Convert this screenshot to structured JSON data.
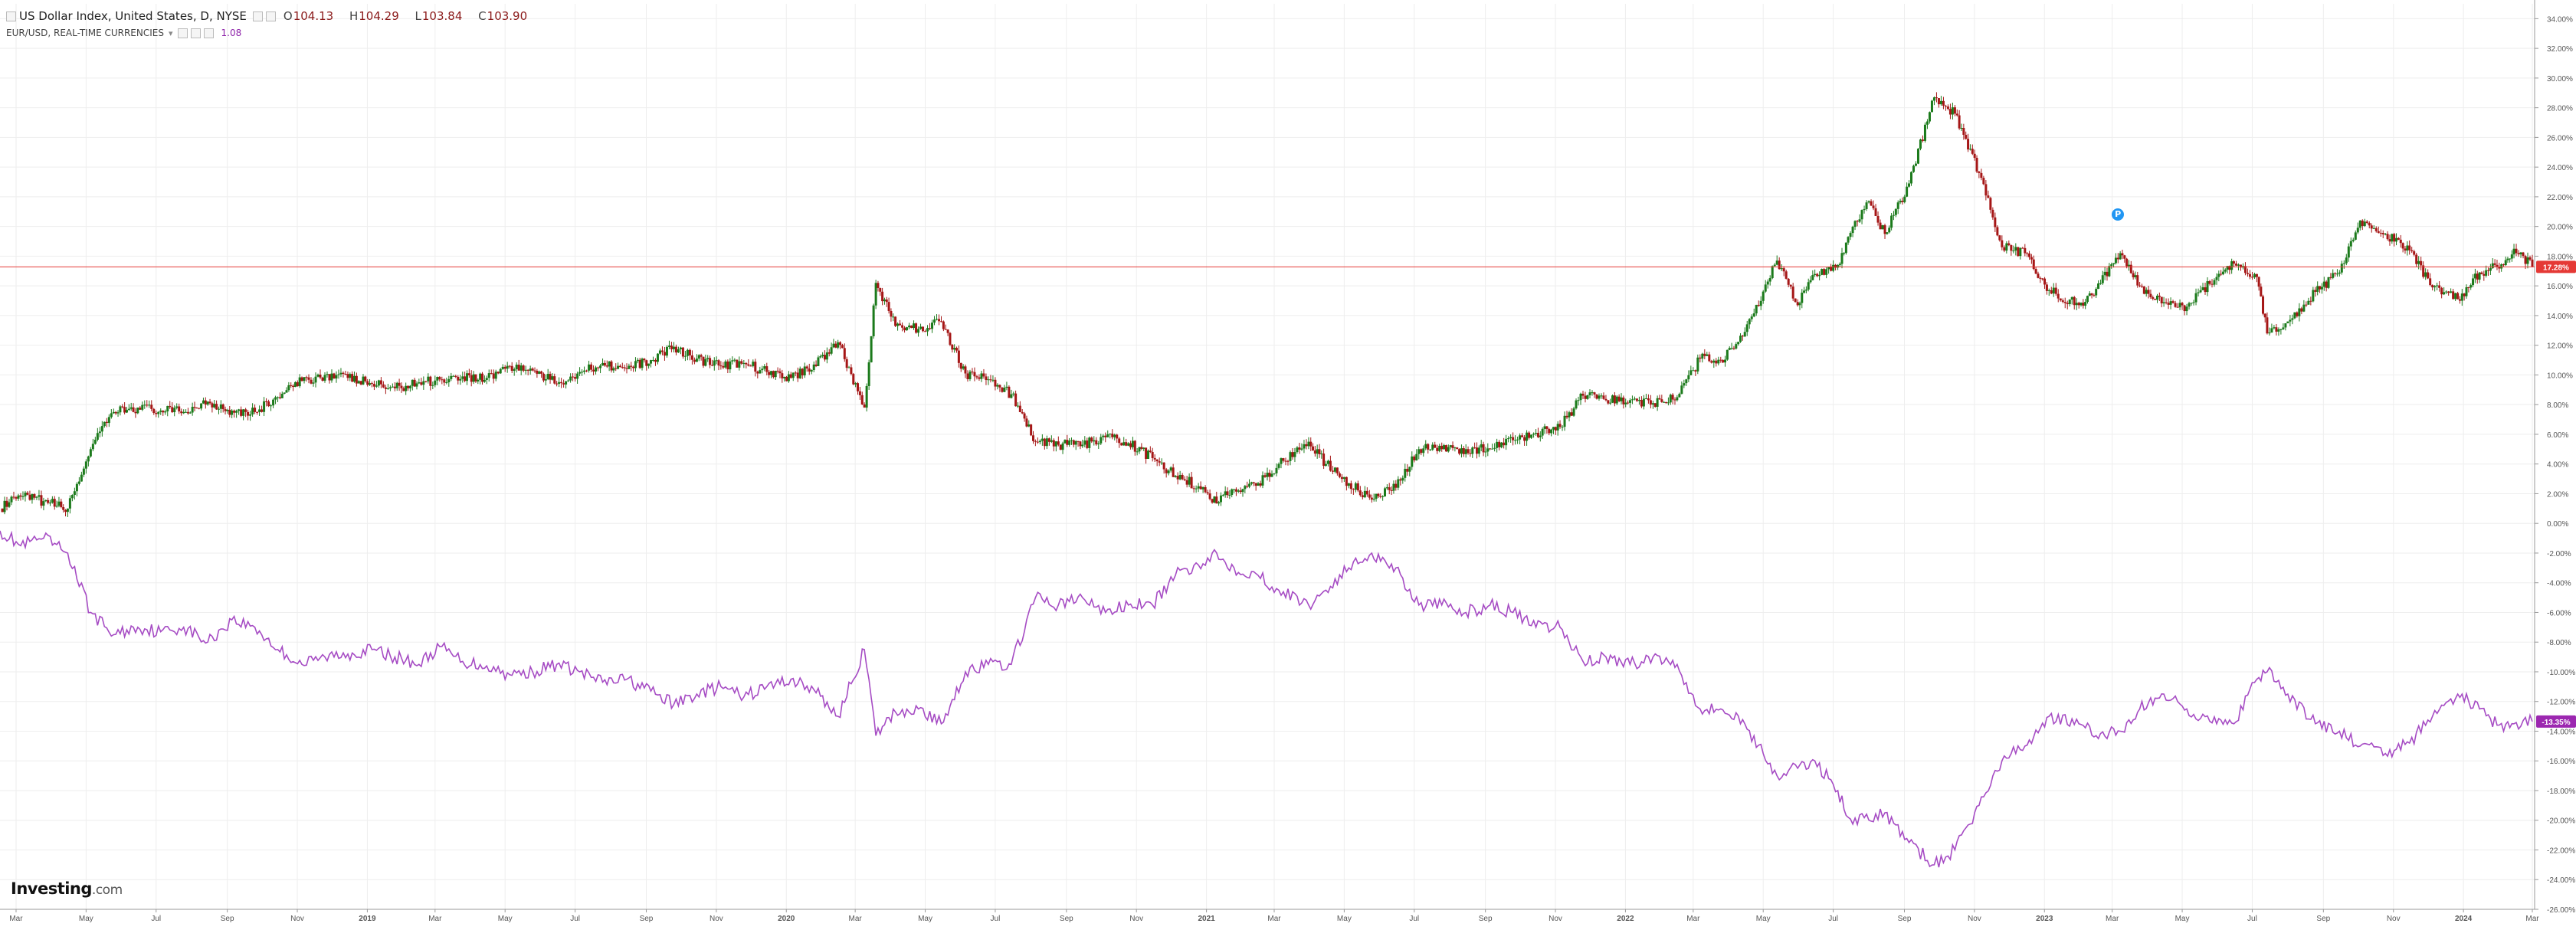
{
  "legend": {
    "main_title": "US Dollar Index, United States, D, NYSE",
    "open_label": "O",
    "open": "104.13",
    "high_label": "H",
    "high": "104.29",
    "low_label": "L",
    "low": "103.84",
    "close_label": "C",
    "close": "103.90",
    "compare_title": "EUR/USD, REAL-TIME CURRENCIES",
    "compare_value": "1.08"
  },
  "branding": {
    "logo_main": "Investing",
    "logo_suffix": ".com"
  },
  "event_marker": {
    "icon": "event-flag-icon",
    "glyph": "P",
    "date": "2023-03-06"
  },
  "colors": {
    "up": "#1b7a1b",
    "down": "#a51616",
    "compare_line": "#a64cc4",
    "price_line": "#e53935",
    "dxy_badge": "#e53935",
    "eur_badge": "#9c27b0",
    "grid": "#eeeeee",
    "axis_text": "#555555"
  },
  "chart_data": {
    "type": "line",
    "title": "",
    "ylabel": "",
    "xlabel": "",
    "y_unit": "%",
    "ylim": [
      -26,
      35
    ],
    "grid": true,
    "y_ticks": [
      "34.00%",
      "32.00%",
      "30.00%",
      "28.00%",
      "26.00%",
      "24.00%",
      "22.00%",
      "20.00%",
      "18.00%",
      "16.00%",
      "14.00%",
      "12.00%",
      "10.00%",
      "8.00%",
      "6.00%",
      "4.00%",
      "2.00%",
      "0.00%",
      "-2.00%",
      "-4.00%",
      "-6.00%",
      "-8.00%",
      "-10.00%",
      "-12.00%",
      "-14.00%",
      "-16.00%",
      "-18.00%",
      "-20.00%",
      "-22.00%",
      "-24.00%",
      "-26.00%"
    ],
    "x_ticks": [
      {
        "date": "2018-03-01",
        "label": "Mar"
      },
      {
        "date": "2018-05-01",
        "label": "May"
      },
      {
        "date": "2018-07-01",
        "label": "Jul"
      },
      {
        "date": "2018-09-01",
        "label": "Sep"
      },
      {
        "date": "2018-11-01",
        "label": "Nov"
      },
      {
        "date": "2019-01-01",
        "label": "2019"
      },
      {
        "date": "2019-03-01",
        "label": "Mar"
      },
      {
        "date": "2019-05-01",
        "label": "May"
      },
      {
        "date": "2019-07-01",
        "label": "Jul"
      },
      {
        "date": "2019-09-01",
        "label": "Sep"
      },
      {
        "date": "2019-11-01",
        "label": "Nov"
      },
      {
        "date": "2020-01-01",
        "label": "2020"
      },
      {
        "date": "2020-03-01",
        "label": "Mar"
      },
      {
        "date": "2020-05-01",
        "label": "May"
      },
      {
        "date": "2020-07-01",
        "label": "Jul"
      },
      {
        "date": "2020-09-01",
        "label": "Sep"
      },
      {
        "date": "2020-11-01",
        "label": "Nov"
      },
      {
        "date": "2021-01-01",
        "label": "2021"
      },
      {
        "date": "2021-03-01",
        "label": "Mar"
      },
      {
        "date": "2021-05-01",
        "label": "May"
      },
      {
        "date": "2021-07-01",
        "label": "Jul"
      },
      {
        "date": "2021-09-01",
        "label": "Sep"
      },
      {
        "date": "2021-11-01",
        "label": "Nov"
      },
      {
        "date": "2022-01-01",
        "label": "2022"
      },
      {
        "date": "2022-03-01",
        "label": "Mar"
      },
      {
        "date": "2022-05-01",
        "label": "May"
      },
      {
        "date": "2022-07-01",
        "label": "Jul"
      },
      {
        "date": "2022-09-01",
        "label": "Sep"
      },
      {
        "date": "2022-11-01",
        "label": "Nov"
      },
      {
        "date": "2023-01-01",
        "label": "2023"
      },
      {
        "date": "2023-03-01",
        "label": "Mar"
      },
      {
        "date": "2023-05-01",
        "label": "May"
      },
      {
        "date": "2023-07-01",
        "label": "Jul"
      },
      {
        "date": "2023-09-01",
        "label": "Sep"
      },
      {
        "date": "2023-11-01",
        "label": "Nov"
      },
      {
        "date": "2024-01-01",
        "label": "2024"
      },
      {
        "date": "2024-03-01",
        "label": "Mar"
      }
    ],
    "x_range": [
      "2018-02-15",
      "2024-03-03"
    ],
    "series": [
      {
        "name": "US Dollar Index",
        "style": "candlestick",
        "last_value_label": "17.28%",
        "last_value": 17.28,
        "x": [
          "2018-02-15",
          "2018-03-05",
          "2018-03-25",
          "2018-04-15",
          "2018-05-05",
          "2018-05-25",
          "2018-06-15",
          "2018-07-05",
          "2018-07-25",
          "2018-08-15",
          "2018-09-05",
          "2018-09-25",
          "2018-10-15",
          "2018-11-05",
          "2018-11-25",
          "2018-12-15",
          "2019-01-05",
          "2019-01-25",
          "2019-02-15",
          "2019-03-05",
          "2019-03-25",
          "2019-04-15",
          "2019-05-05",
          "2019-05-25",
          "2019-06-15",
          "2019-07-05",
          "2019-07-25",
          "2019-08-15",
          "2019-09-05",
          "2019-09-25",
          "2019-10-15",
          "2019-11-05",
          "2019-11-25",
          "2019-12-15",
          "2020-01-05",
          "2020-01-25",
          "2020-02-15",
          "2020-03-09",
          "2020-03-19",
          "2020-04-05",
          "2020-04-25",
          "2020-05-15",
          "2020-06-05",
          "2020-06-25",
          "2020-07-15",
          "2020-08-05",
          "2020-08-25",
          "2020-09-15",
          "2020-10-05",
          "2020-10-25",
          "2020-11-15",
          "2020-12-05",
          "2020-12-25",
          "2021-01-06",
          "2021-01-25",
          "2021-02-15",
          "2021-03-05",
          "2021-03-31",
          "2021-04-15",
          "2021-05-05",
          "2021-05-25",
          "2021-06-15",
          "2021-07-05",
          "2021-07-25",
          "2021-08-15",
          "2021-09-05",
          "2021-09-25",
          "2021-10-15",
          "2021-11-05",
          "2021-11-25",
          "2021-12-15",
          "2022-01-05",
          "2022-01-25",
          "2022-02-15",
          "2022-03-07",
          "2022-03-25",
          "2022-04-15",
          "2022-05-13",
          "2022-05-31",
          "2022-06-15",
          "2022-07-05",
          "2022-07-14",
          "2022-08-01",
          "2022-08-15",
          "2022-09-05",
          "2022-09-27",
          "2022-10-15",
          "2022-11-05",
          "2022-11-25",
          "2022-12-15",
          "2023-01-05",
          "2023-01-31",
          "2023-02-15",
          "2023-03-08",
          "2023-03-25",
          "2023-04-15",
          "2023-05-05",
          "2023-05-31",
          "2023-06-15",
          "2023-07-05",
          "2023-07-14",
          "2023-08-01",
          "2023-08-25",
          "2023-09-15",
          "2023-10-03",
          "2023-10-25",
          "2023-11-15",
          "2023-12-05",
          "2023-12-27",
          "2024-01-15",
          "2024-02-05",
          "2024-02-14",
          "2024-03-01"
        ],
        "values": [
          1.0,
          1.8,
          1.5,
          1.0,
          5.0,
          7.5,
          7.8,
          7.6,
          7.5,
          8.2,
          7.6,
          7.5,
          8.5,
          9.6,
          10.0,
          9.8,
          9.4,
          9.1,
          9.5,
          9.7,
          9.9,
          9.8,
          10.6,
          10.3,
          9.4,
          10.2,
          10.8,
          10.4,
          11.0,
          11.9,
          11.1,
          10.6,
          10.8,
          10.2,
          9.8,
          10.7,
          12.2,
          7.8,
          16.2,
          13.3,
          13.1,
          13.6,
          10.1,
          9.7,
          8.7,
          5.5,
          5.3,
          5.3,
          5.8,
          5.4,
          4.4,
          3.2,
          2.5,
          1.4,
          2.3,
          2.7,
          4.0,
          5.5,
          4.0,
          2.7,
          1.6,
          2.4,
          5.0,
          5.0,
          5.0,
          5.0,
          5.6,
          6.1,
          6.5,
          8.6,
          8.3,
          8.3,
          8.1,
          8.5,
          11.1,
          11.0,
          12.9,
          17.7,
          14.7,
          16.8,
          17.4,
          19.3,
          21.7,
          19.5,
          22.9,
          28.7,
          27.6,
          23.6,
          18.6,
          18.2,
          15.7,
          14.7,
          15.8,
          18.2,
          16.0,
          14.9,
          14.6,
          16.6,
          17.5,
          16.6,
          12.8,
          13.6,
          15.6,
          16.9,
          20.4,
          19.5,
          18.4,
          15.9,
          15.1,
          16.9,
          17.4,
          18.5,
          17.28
        ]
      },
      {
        "name": "EUR/USD, REAL-TIME CURRENCIES",
        "style": "line",
        "last_value_label": "-13.35%",
        "last_value": -13.35,
        "x": [
          "2018-02-15",
          "2018-03-05",
          "2018-03-25",
          "2018-04-15",
          "2018-05-05",
          "2018-05-25",
          "2018-06-15",
          "2018-07-05",
          "2018-07-25",
          "2018-08-15",
          "2018-09-05",
          "2018-09-25",
          "2018-10-15",
          "2018-11-05",
          "2018-11-25",
          "2018-12-15",
          "2019-01-05",
          "2019-01-25",
          "2019-02-15",
          "2019-03-05",
          "2019-03-25",
          "2019-04-15",
          "2019-05-05",
          "2019-05-25",
          "2019-06-15",
          "2019-07-05",
          "2019-07-25",
          "2019-08-15",
          "2019-09-05",
          "2019-09-25",
          "2019-10-15",
          "2019-11-05",
          "2019-11-25",
          "2019-12-15",
          "2020-01-05",
          "2020-01-25",
          "2020-02-15",
          "2020-03-09",
          "2020-03-19",
          "2020-04-05",
          "2020-04-25",
          "2020-05-15",
          "2020-06-05",
          "2020-06-25",
          "2020-07-15",
          "2020-08-05",
          "2020-08-25",
          "2020-09-15",
          "2020-10-05",
          "2020-10-25",
          "2020-11-15",
          "2020-12-05",
          "2020-12-25",
          "2021-01-06",
          "2021-01-25",
          "2021-02-15",
          "2021-03-05",
          "2021-03-31",
          "2021-04-15",
          "2021-05-05",
          "2021-05-25",
          "2021-06-15",
          "2021-07-05",
          "2021-07-25",
          "2021-08-15",
          "2021-09-05",
          "2021-09-25",
          "2021-10-15",
          "2021-11-05",
          "2021-11-25",
          "2021-12-15",
          "2022-01-05",
          "2022-01-25",
          "2022-02-15",
          "2022-03-07",
          "2022-03-25",
          "2022-04-15",
          "2022-05-13",
          "2022-05-31",
          "2022-06-15",
          "2022-07-05",
          "2022-07-14",
          "2022-08-01",
          "2022-08-15",
          "2022-09-05",
          "2022-09-27",
          "2022-10-15",
          "2022-11-05",
          "2022-11-25",
          "2022-12-15",
          "2023-01-05",
          "2023-01-31",
          "2023-02-15",
          "2023-03-08",
          "2023-03-25",
          "2023-04-15",
          "2023-05-05",
          "2023-05-31",
          "2023-06-15",
          "2023-07-05",
          "2023-07-14",
          "2023-08-01",
          "2023-08-25",
          "2023-09-15",
          "2023-10-03",
          "2023-10-25",
          "2023-11-15",
          "2023-12-05",
          "2023-12-27",
          "2024-01-15",
          "2024-02-05",
          "2024-02-14",
          "2024-03-01"
        ],
        "values": [
          -0.5,
          -1.5,
          -1.0,
          -2.0,
          -6.0,
          -7.5,
          -7.0,
          -7.3,
          -7.0,
          -8.0,
          -6.5,
          -7.0,
          -8.5,
          -9.5,
          -9.0,
          -8.8,
          -8.5,
          -9.0,
          -9.5,
          -8.3,
          -9.3,
          -9.6,
          -10.2,
          -10.0,
          -9.5,
          -10.0,
          -10.7,
          -10.5,
          -11.3,
          -12.2,
          -11.5,
          -11.0,
          -11.7,
          -11.0,
          -10.5,
          -11.2,
          -13.0,
          -8.5,
          -14.3,
          -12.7,
          -12.5,
          -13.5,
          -10.0,
          -9.5,
          -9.5,
          -5.0,
          -5.5,
          -5.0,
          -6.0,
          -5.5,
          -5.5,
          -3.5,
          -2.8,
          -2.0,
          -3.0,
          -3.5,
          -4.5,
          -5.5,
          -4.5,
          -3.0,
          -2.0,
          -3.0,
          -5.5,
          -5.5,
          -6.0,
          -5.5,
          -6.0,
          -7.0,
          -7.0,
          -9.3,
          -9.0,
          -9.5,
          -9.0,
          -9.5,
          -12.5,
          -12.5,
          -13.5,
          -17.0,
          -16.5,
          -16.0,
          -18.0,
          -19.8,
          -20.0,
          -19.5,
          -21.5,
          -23.0,
          -22.0,
          -19.0,
          -16.0,
          -15.0,
          -13.0,
          -13.5,
          -14.3,
          -14.0,
          -12.5,
          -11.5,
          -12.5,
          -13.5,
          -13.5,
          -10.5,
          -10.0,
          -11.5,
          -13.5,
          -14.0,
          -15.0,
          -15.5,
          -14.8,
          -13.0,
          -11.5,
          -12.5,
          -14.0,
          -13.5,
          -13.35
        ]
      }
    ]
  }
}
